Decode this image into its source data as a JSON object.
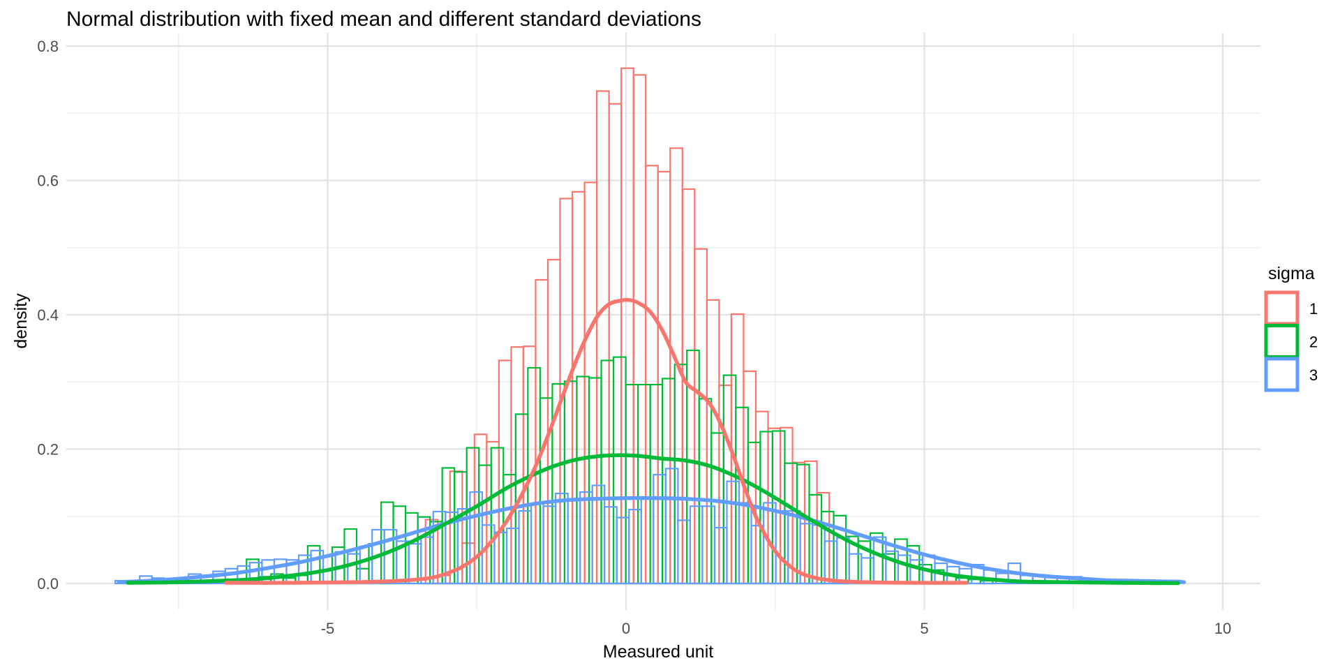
{
  "colors": {
    "background": "#FFFFFF",
    "grid_major": "#E2E2E2",
    "grid_minor": "#EEEEEE",
    "tick_text": "#4D4D4D",
    "title_text": "#000000",
    "sigma1": "#F8766D",
    "sigma2": "#00BA38",
    "sigma3": "#619CFF"
  },
  "chart_data": {
    "type": "histogram",
    "subtype": "overlaid histograms with kernel density curves",
    "title": "Normal distribution with fixed mean and different standard deviations",
    "xlabel": "Measured unit",
    "ylabel": "density",
    "grid": "on",
    "x_axis": {
      "range": [
        -9.4,
        10.6
      ],
      "ticks": [
        {
          "value": -5,
          "label": "-5"
        },
        {
          "value": 0,
          "label": "0"
        },
        {
          "value": 5,
          "label": "5"
        },
        {
          "value": 10,
          "label": "10"
        }
      ],
      "minor": [
        -7.5,
        -2.5,
        2.5,
        7.5
      ]
    },
    "y_axis": {
      "range": [
        -0.04,
        0.805
      ],
      "ticks": [
        {
          "value": 0.0,
          "label": "0.0"
        },
        {
          "value": 0.2,
          "label": "0.2"
        },
        {
          "value": 0.4,
          "label": "0.4"
        },
        {
          "value": 0.6,
          "label": "0.6"
        },
        {
          "value": 0.8,
          "label": "0.8"
        }
      ],
      "minor": [
        0.1,
        0.3,
        0.5,
        0.7
      ]
    },
    "legend": {
      "title": "sigma",
      "position": "right",
      "items": [
        {
          "label": "1",
          "color": "#F8766D"
        },
        {
          "label": "2",
          "color": "#00BA38"
        },
        {
          "label": "3",
          "color": "#619CFF"
        }
      ]
    },
    "series": [
      {
        "name": "sigma 1",
        "color": "#F8766D",
        "histogram": {
          "x0": -3.36,
          "binwidth": 0.205,
          "heights": [
            0.095,
            0.012,
            0.167,
            0.06,
            0.222,
            0.211,
            0.332,
            0.352,
            0.353,
            0.452,
            0.482,
            0.573,
            0.583,
            0.597,
            0.733,
            0.714,
            0.767,
            0.757,
            0.622,
            0.613,
            0.648,
            0.587,
            0.498,
            0.422,
            0.295,
            0.401,
            0.316,
            0.256,
            0.231,
            0.232,
            0.18,
            0.182,
            0.135
          ]
        },
        "density": {
          "x": [
            -6.7,
            -5.5,
            -4.5,
            -3.8,
            -3.3,
            -3.0,
            -2.7,
            -2.4,
            -2.1,
            -1.9,
            -1.7,
            -1.5,
            -1.3,
            -1.1,
            -0.9,
            -0.7,
            -0.5,
            -0.3,
            -0.1,
            0.05,
            0.2,
            0.4,
            0.6,
            0.8,
            1.0,
            1.2,
            1.4,
            1.6,
            1.8,
            2.0,
            2.2,
            2.5,
            2.8,
            3.1,
            3.5,
            4.0,
            4.8,
            5.7
          ],
          "y": [
            0.001,
            0.001,
            0.002,
            0.004,
            0.008,
            0.015,
            0.027,
            0.048,
            0.08,
            0.107,
            0.14,
            0.178,
            0.222,
            0.27,
            0.317,
            0.36,
            0.395,
            0.415,
            0.421,
            0.422,
            0.418,
            0.405,
            0.378,
            0.34,
            0.3,
            0.285,
            0.268,
            0.235,
            0.19,
            0.14,
            0.095,
            0.048,
            0.022,
            0.01,
            0.004,
            0.002,
            0.001,
            0.001
          ]
        }
      },
      {
        "name": "sigma 2",
        "color": "#00BA38",
        "histogram": {
          "x0": -6.36,
          "binwidth": 0.205,
          "heights": [
            0.036,
            0.01,
            0.014,
            0.008,
            0.012,
            0.056,
            0.02,
            0.054,
            0.081,
            0.022,
            0.059,
            0.121,
            0.115,
            0.105,
            0.099,
            0.092,
            0.172,
            0.166,
            0.202,
            0.176,
            0.202,
            0.162,
            0.252,
            0.321,
            0.276,
            0.297,
            0.301,
            0.308,
            0.306,
            0.332,
            0.337,
            0.296,
            0.296,
            0.296,
            0.305,
            0.326,
            0.347,
            0.275,
            0.224,
            0.31,
            0.262,
            0.21,
            0.226,
            0.227,
            0.179,
            0.177,
            0.132,
            0.107,
            0.101,
            0.07,
            0.063,
            0.075,
            0.044,
            0.066,
            0.056,
            0.028,
            0.02,
            0.012,
            0.008,
            0.006,
            0.004
          ]
        },
        "density": {
          "x": [
            -8.35,
            -7.5,
            -6.5,
            -6.0,
            -5.5,
            -5.0,
            -4.5,
            -4.0,
            -3.5,
            -3.0,
            -2.5,
            -2.0,
            -1.6,
            -1.2,
            -0.8,
            -0.4,
            -0.1,
            0.2,
            0.6,
            1.0,
            1.4,
            1.8,
            2.2,
            2.6,
            3.0,
            3.4,
            3.8,
            4.2,
            4.6,
            5.0,
            5.5,
            6.0,
            6.6,
            7.3,
            8.2,
            9.25
          ],
          "y": [
            0.001,
            0.002,
            0.005,
            0.008,
            0.013,
            0.02,
            0.031,
            0.046,
            0.066,
            0.09,
            0.115,
            0.142,
            0.16,
            0.175,
            0.185,
            0.19,
            0.191,
            0.19,
            0.186,
            0.183,
            0.175,
            0.161,
            0.143,
            0.122,
            0.1,
            0.079,
            0.06,
            0.044,
            0.031,
            0.021,
            0.012,
            0.007,
            0.003,
            0.002,
            0.001,
            0.0005
          ]
        }
      },
      {
        "name": "sigma 3",
        "color": "#619CFF",
        "histogram": {
          "x0": -8.56,
          "binwidth": 0.205,
          "heights": [
            0.004,
            0.0,
            0.011,
            0.008,
            0.006,
            0.008,
            0.014,
            0.012,
            0.018,
            0.022,
            0.026,
            0.031,
            0.035,
            0.036,
            0.035,
            0.042,
            0.049,
            0.041,
            0.047,
            0.044,
            0.055,
            0.08,
            0.08,
            0.063,
            0.059,
            0.069,
            0.107,
            0.106,
            0.111,
            0.136,
            0.087,
            0.076,
            0.082,
            0.108,
            0.119,
            0.115,
            0.134,
            0.125,
            0.136,
            0.146,
            0.114,
            0.098,
            0.11,
            0.126,
            0.162,
            0.171,
            0.094,
            0.115,
            0.115,
            0.083,
            0.152,
            0.12,
            0.086,
            0.12,
            0.108,
            0.108,
            0.089,
            0.087,
            0.063,
            0.068,
            0.044,
            0.038,
            0.069,
            0.048,
            0.042,
            0.035,
            0.042,
            0.03,
            0.025,
            0.022,
            0.028,
            0.02,
            0.015,
            0.03,
            0.012,
            0.013,
            0.01,
            0.009,
            0.01,
            0.006,
            0.0055,
            0.0055,
            0.004,
            0.004,
            0.004,
            0.003,
            0.0045
          ]
        },
        "density": {
          "x": [
            -8.5,
            -8.0,
            -7.5,
            -7.0,
            -6.5,
            -6.0,
            -5.5,
            -5.0,
            -4.5,
            -4.0,
            -3.5,
            -3.0,
            -2.5,
            -2.0,
            -1.5,
            -1.0,
            -0.5,
            0.0,
            0.5,
            1.0,
            1.5,
            2.0,
            2.5,
            3.0,
            3.5,
            4.0,
            4.5,
            5.0,
            5.5,
            6.0,
            6.5,
            7.0,
            7.5,
            8.0,
            8.5,
            9.0,
            9.35
          ],
          "y": [
            0.002,
            0.004,
            0.007,
            0.011,
            0.016,
            0.023,
            0.031,
            0.041,
            0.052,
            0.064,
            0.077,
            0.09,
            0.101,
            0.111,
            0.119,
            0.124,
            0.126,
            0.127,
            0.127,
            0.126,
            0.123,
            0.117,
            0.108,
            0.097,
            0.084,
            0.07,
            0.056,
            0.043,
            0.032,
            0.023,
            0.016,
            0.011,
            0.008,
            0.005,
            0.004,
            0.003,
            0.002
          ]
        }
      }
    ]
  }
}
